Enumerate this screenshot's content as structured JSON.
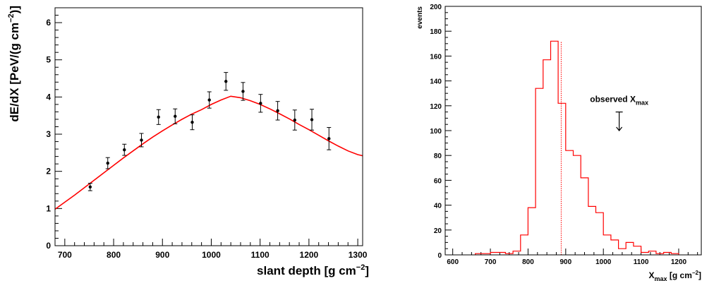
{
  "chart_data": [
    {
      "type": "scatter",
      "title": "",
      "xlabel": "slant depth [g cm",
      "xlabel_sup": "−2",
      "xlabel_end": "]",
      "ylabel": "dE/dX [PeV/(g cm",
      "ylabel_sup": "−2",
      "ylabel_end": ")]",
      "xlim": [
        680,
        1310
      ],
      "ylim": [
        0,
        6.4
      ],
      "xticks": [
        "700",
        "800",
        "900",
        "1000",
        "1100",
        "1200",
        "1300"
      ],
      "yticks": [
        "0",
        "1",
        "2",
        "3",
        "4",
        "5",
        "6"
      ],
      "grid": false,
      "series": [
        {
          "kind": "points_with_errors",
          "color": "#000000",
          "x": [
            752,
            788,
            822,
            857,
            892,
            926,
            961,
            996,
            1030,
            1065,
            1101,
            1136,
            1171,
            1206,
            1241
          ],
          "y": [
            1.58,
            2.22,
            2.58,
            2.84,
            3.46,
            3.48,
            3.32,
            3.92,
            4.42,
            4.15,
            3.83,
            3.63,
            3.38,
            3.39,
            2.88
          ],
          "err": [
            0.1,
            0.15,
            0.15,
            0.18,
            0.2,
            0.2,
            0.2,
            0.22,
            0.24,
            0.24,
            0.24,
            0.25,
            0.27,
            0.28,
            0.3
          ]
        },
        {
          "kind": "fit_curve",
          "color": "#ff0000",
          "peak_x": 1040,
          "peak_y": 4.02,
          "x": [
            680,
            700,
            720,
            740,
            760,
            780,
            800,
            820,
            840,
            860,
            880,
            900,
            920,
            940,
            960,
            980,
            1000,
            1020,
            1040,
            1060,
            1080,
            1100,
            1120,
            1140,
            1160,
            1180,
            1200,
            1220,
            1240,
            1260,
            1280,
            1300,
            1310
          ],
          "y": [
            0.98,
            1.17,
            1.36,
            1.56,
            1.76,
            1.96,
            2.16,
            2.36,
            2.55,
            2.74,
            2.92,
            3.09,
            3.25,
            3.4,
            3.54,
            3.66,
            3.8,
            3.92,
            4.02,
            3.98,
            3.9,
            3.8,
            3.68,
            3.55,
            3.41,
            3.26,
            3.12,
            2.97,
            2.82,
            2.68,
            2.55,
            2.45,
            2.42
          ]
        }
      ]
    },
    {
      "type": "bar",
      "subtype": "histogram",
      "title": "",
      "xlabel": "X",
      "xlabel_sub": "max",
      "xlabel_end": " [g cm",
      "xlabel_sup": "−2",
      "xlabel_end2": "]",
      "ylabel": "events",
      "xlim": [
        580,
        1260
      ],
      "ylim": [
        0,
        200
      ],
      "xticks": [
        "600",
        "700",
        "800",
        "900",
        "1000",
        "1100",
        "1200"
      ],
      "yticks": [
        "0",
        "20",
        "40",
        "60",
        "80",
        "100",
        "120",
        "140",
        "160",
        "180",
        "200"
      ],
      "grid": false,
      "color": "#ff0000",
      "bin_width": 20,
      "bin_starts": [
        660,
        680,
        700,
        720,
        740,
        760,
        780,
        800,
        820,
        840,
        860,
        880,
        900,
        920,
        940,
        960,
        980,
        1000,
        1020,
        1040,
        1060,
        1080,
        1100,
        1120,
        1140,
        1160,
        1180
      ],
      "values": [
        1,
        1,
        2,
        2,
        1,
        3,
        16,
        38,
        134,
        157,
        172,
        122,
        84,
        80,
        62,
        39,
        34,
        16,
        12,
        5,
        10,
        7,
        2,
        3,
        1,
        2,
        1
      ],
      "mean_line_x": 888,
      "annotation": {
        "text": "observed X",
        "sub": "max",
        "arrow_x": 1042,
        "arrow_from_y": 115,
        "arrow_to_y": 100
      }
    }
  ]
}
